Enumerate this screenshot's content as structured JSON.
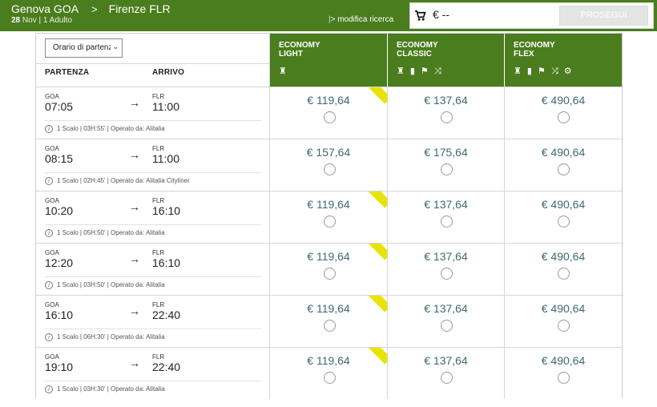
{
  "header": {
    "origin": "Genova GOA",
    "destination": "Firenze FLR",
    "date_day": "28",
    "date_month": "Nov",
    "passengers": "1 Adulto",
    "modify_label": "> modifica ricerca",
    "cart_price": "€ --",
    "continue_label": "PROSEGUI",
    "cart_icon": "shopping-cart-icon"
  },
  "table": {
    "sort_select": "Orario di partenza",
    "departure_label": "PARTENZA",
    "arrival_label": "ARRIVO",
    "fares": [
      {
        "line1": "ECONOMY",
        "line2": "LIGHT",
        "icons": "♜"
      },
      {
        "line1": "ECONOMY",
        "line2": "CLASSIC",
        "icons": "♜ ▮ ⚑ ⤨"
      },
      {
        "line1": "ECONOMY",
        "line2": "FLEX",
        "icons": "♜ ▮ ⚑ ⤨ ⚙"
      }
    ]
  },
  "flights": [
    {
      "from": "GOA",
      "dep": "07:05",
      "to": "FLR",
      "arr": "11:00",
      "details": "1 Scalo | 03H:55' | Operato da: Alitalia",
      "prices": [
        "€ 119,64",
        "€ 137,64",
        "€ 490,64"
      ],
      "promo": true
    },
    {
      "from": "GOA",
      "dep": "08:15",
      "to": "FLR",
      "arr": "11:00",
      "details": "1 Scalo | 02H:45' | Operato da: Alitalia Cityliner",
      "prices": [
        "€ 157,64",
        "€ 175,64",
        "€ 490,64"
      ],
      "promo": false
    },
    {
      "from": "GOA",
      "dep": "10:20",
      "to": "FLR",
      "arr": "16:10",
      "details": "1 Scalo | 05H:50' | Operato da: Alitalia",
      "prices": [
        "€ 119,64",
        "€ 137,64",
        "€ 490,64"
      ],
      "promo": true
    },
    {
      "from": "GOA",
      "dep": "12:20",
      "to": "FLR",
      "arr": "16:10",
      "details": "1 Scalo | 03H:50' | Operato da: Alitalia",
      "prices": [
        "€ 119,64",
        "€ 137,64",
        "€ 490,64"
      ],
      "promo": true
    },
    {
      "from": "GOA",
      "dep": "16:10",
      "to": "FLR",
      "arr": "22:40",
      "details": "1 Scalo | 06H:30' | Operato da: Alitalia",
      "prices": [
        "€ 119,64",
        "€ 137,64",
        "€ 490,64"
      ],
      "promo": true
    },
    {
      "from": "GOA",
      "dep": "19:10",
      "to": "FLR",
      "arr": "22:40",
      "details": "1 Scalo | 03H:30' | Operato da: Alitalia",
      "prices": [
        "€ 119,64",
        "€ 137,64",
        "€ 490,64"
      ],
      "promo": true
    }
  ],
  "colors": {
    "brand_green": "#4a7d1d",
    "price_teal": "#3d6a6e",
    "promo_yellow": "#e8e400"
  }
}
